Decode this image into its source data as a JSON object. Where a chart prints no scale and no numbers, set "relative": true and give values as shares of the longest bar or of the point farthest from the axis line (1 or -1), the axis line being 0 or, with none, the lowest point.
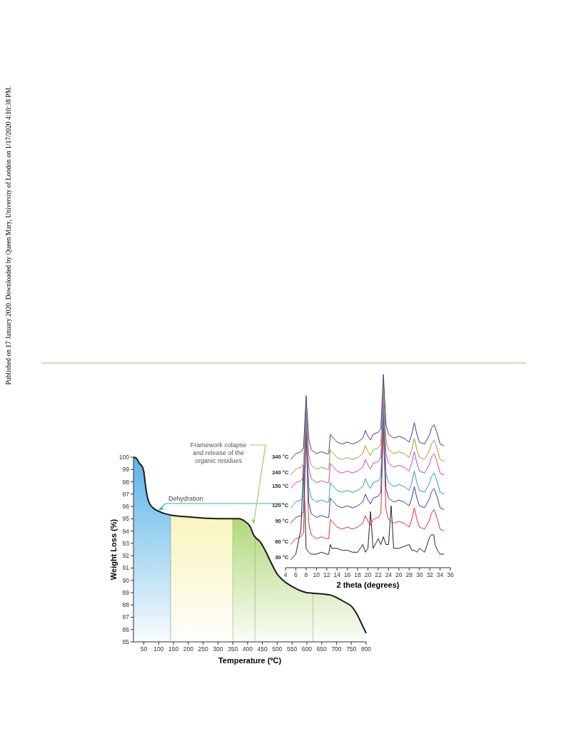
{
  "chart_data": [
    {
      "type": "line",
      "xlabel": "Temperature (ºC)",
      "ylabel": "Weight Loss (%)",
      "xlim": [
        15,
        800
      ],
      "ylim": [
        85,
        100
      ],
      "xticks": [
        50,
        100,
        150,
        200,
        250,
        300,
        350,
        400,
        450,
        500,
        550,
        600,
        650,
        700,
        750,
        800
      ],
      "yticks": [
        85,
        86,
        87,
        88,
        89,
        90,
        91,
        92,
        93,
        94,
        95,
        96,
        97,
        98,
        99,
        100
      ],
      "series": [
        {
          "color": "#1a1a1a",
          "x": [
            15,
            25,
            35,
            45,
            50,
            55,
            60,
            65,
            70,
            80,
            100,
            140,
            200,
            300,
            370,
            390,
            410,
            420,
            430,
            440,
            460,
            480,
            500,
            520,
            550,
            600,
            620,
            650,
            680,
            700,
            730,
            750,
            770,
            790,
            800
          ],
          "values": [
            100,
            99.9,
            99.5,
            99.2,
            98.8,
            97.8,
            97,
            96.5,
            96.2,
            95.9,
            95.6,
            95.3,
            95.15,
            95.0,
            95.0,
            94.8,
            94.3,
            93.7,
            93.4,
            93.2,
            92.4,
            91.4,
            90.5,
            90.0,
            89.5,
            89.0,
            88.95,
            88.9,
            88.8,
            88.6,
            88.2,
            87.9,
            87.2,
            86.2,
            85.7
          ]
        }
      ],
      "bands": [
        {
          "axis": "x",
          "from": 15,
          "to": 140,
          "color": "#5ab4e6"
        },
        {
          "axis": "x",
          "from": 140,
          "to": 350,
          "color": "#f6f0a0"
        },
        {
          "axis": "x",
          "from": 350,
          "to": 800,
          "color": "#8cc63f"
        }
      ],
      "ref_lines": [
        {
          "axis": "x",
          "value": 140,
          "color": "#2a7fc0",
          "line_style": "dotted"
        },
        {
          "axis": "x",
          "value": 350,
          "color": "#8a9a40",
          "line_style": "dotted"
        },
        {
          "axis": "x",
          "value": 425,
          "color": "#8a9a40",
          "line_style": "dotted"
        },
        {
          "axis": "x",
          "value": 620,
          "color": "#8a9a40",
          "line_style": "dotted"
        }
      ],
      "annotations": [
        {
          "text": "Dehydration",
          "x": 100,
          "y": 95.7
        },
        "Framework colapse and release of the organic residues",
        "Published on 17 January 2020. Downloaded by Queen Mary, University of London on 1/17/2020 4:10:38 PM."
      ],
      "marker": "none"
    },
    {
      "type": "line",
      "relative": true,
      "xlabel": "2 theta (degrees)",
      "xlim": [
        4,
        36
      ],
      "xticks": [
        4,
        6,
        8,
        10,
        12,
        14,
        16,
        18,
        20,
        22,
        24,
        26,
        28,
        30,
        32,
        34,
        36
      ],
      "tick_labels": "x",
      "marker": "none",
      "line_style": "solid",
      "x": [
        5,
        6,
        7,
        7.5,
        8,
        8.5,
        9,
        10,
        11,
        12,
        12.4,
        12.7,
        13,
        14,
        15,
        16,
        17,
        18,
        19,
        19.5,
        20,
        20.5,
        21,
        22,
        22.5,
        23,
        23.5,
        24,
        24.5,
        25,
        26,
        27,
        28,
        28.5,
        29,
        29.5,
        30,
        31,
        32,
        32.3,
        32.8,
        33,
        33.5,
        34,
        34.8
      ],
      "series": [
        {
          "name": "30 °C",
          "color": "#222222",
          "values": [
            0.04,
            0.07,
            0.2,
            0.53,
            0.1,
            0.08,
            0.07,
            0.07,
            0.08,
            0.07,
            0.07,
            0.12,
            0.1,
            0.1,
            0.09,
            0.09,
            0.08,
            0.08,
            0.12,
            0.08,
            0.1,
            0.29,
            0.1,
            0.15,
            0.12,
            0.16,
            0.12,
            0.12,
            0.32,
            0.1,
            0.1,
            0.11,
            0.12,
            0.09,
            0.09,
            0.08,
            0.1,
            0.08,
            0.16,
            0.17,
            0.17,
            0.12,
            0.09,
            0.07,
            0.07
          ]
        },
        {
          "name": "60 °C",
          "color": "#e03030",
          "values": [
            0.12,
            0.15,
            0.16,
            0.18,
            0.7,
            0.23,
            0.17,
            0.15,
            0.16,
            0.15,
            0.15,
            0.25,
            0.24,
            0.21,
            0.2,
            0.21,
            0.2,
            0.21,
            0.23,
            0.27,
            0.24,
            0.22,
            0.25,
            0.26,
            0.28,
            0.72,
            0.3,
            0.25,
            0.24,
            0.23,
            0.24,
            0.23,
            0.21,
            0.25,
            0.31,
            0.25,
            0.21,
            0.2,
            0.25,
            0.28,
            0.3,
            0.29,
            0.25,
            0.2,
            0.19
          ]
        },
        {
          "name": "90 °C",
          "color": "#3a3aa8",
          "values": [
            0.23,
            0.26,
            0.27,
            0.29,
            0.75,
            0.34,
            0.28,
            0.26,
            0.27,
            0.26,
            0.26,
            0.36,
            0.35,
            0.32,
            0.31,
            0.32,
            0.31,
            0.32,
            0.34,
            0.38,
            0.35,
            0.33,
            0.36,
            0.37,
            0.39,
            0.8,
            0.41,
            0.36,
            0.35,
            0.34,
            0.35,
            0.34,
            0.32,
            0.36,
            0.42,
            0.36,
            0.32,
            0.31,
            0.36,
            0.39,
            0.41,
            0.4,
            0.36,
            0.31,
            0.3
          ]
        },
        {
          "name": "120 °C",
          "color": "#2aa0a0",
          "values": [
            0.31,
            0.34,
            0.35,
            0.37,
            0.78,
            0.42,
            0.36,
            0.34,
            0.35,
            0.34,
            0.34,
            0.44,
            0.43,
            0.4,
            0.39,
            0.4,
            0.39,
            0.4,
            0.42,
            0.46,
            0.43,
            0.41,
            0.44,
            0.45,
            0.47,
            0.85,
            0.49,
            0.44,
            0.43,
            0.42,
            0.43,
            0.42,
            0.4,
            0.44,
            0.5,
            0.44,
            0.4,
            0.39,
            0.44,
            0.47,
            0.49,
            0.48,
            0.44,
            0.39,
            0.38
          ]
        },
        {
          "name": "150 °C",
          "color": "#cc44bb",
          "values": [
            0.41,
            0.44,
            0.45,
            0.47,
            0.82,
            0.52,
            0.46,
            0.44,
            0.45,
            0.44,
            0.44,
            0.54,
            0.53,
            0.5,
            0.49,
            0.5,
            0.49,
            0.5,
            0.52,
            0.56,
            0.53,
            0.51,
            0.54,
            0.55,
            0.57,
            0.9,
            0.59,
            0.54,
            0.53,
            0.52,
            0.53,
            0.52,
            0.5,
            0.54,
            0.6,
            0.54,
            0.5,
            0.49,
            0.54,
            0.57,
            0.59,
            0.58,
            0.54,
            0.49,
            0.48
          ]
        },
        {
          "name": "240 °C",
          "color": "#a0a030",
          "values": [
            0.48,
            0.51,
            0.52,
            0.54,
            0.85,
            0.59,
            0.53,
            0.51,
            0.52,
            0.51,
            0.51,
            0.61,
            0.6,
            0.57,
            0.56,
            0.57,
            0.56,
            0.57,
            0.59,
            0.63,
            0.6,
            0.58,
            0.61,
            0.62,
            0.64,
            0.95,
            0.66,
            0.61,
            0.6,
            0.59,
            0.6,
            0.59,
            0.57,
            0.61,
            0.67,
            0.61,
            0.57,
            0.56,
            0.61,
            0.64,
            0.66,
            0.65,
            0.61,
            0.56,
            0.55
          ]
        },
        {
          "name": "340 °C",
          "color": "#3a3a9a",
          "values": [
            0.56,
            0.59,
            0.6,
            0.62,
            0.89,
            0.67,
            0.61,
            0.59,
            0.6,
            0.59,
            0.59,
            0.69,
            0.68,
            0.65,
            0.64,
            0.65,
            0.64,
            0.65,
            0.67,
            0.71,
            0.68,
            0.66,
            0.69,
            0.7,
            0.72,
            1.0,
            0.74,
            0.69,
            0.68,
            0.67,
            0.68,
            0.67,
            0.65,
            0.69,
            0.75,
            0.69,
            0.65,
            0.64,
            0.69,
            0.72,
            0.74,
            0.73,
            0.69,
            0.64,
            0.63
          ]
        }
      ]
    }
  ]
}
